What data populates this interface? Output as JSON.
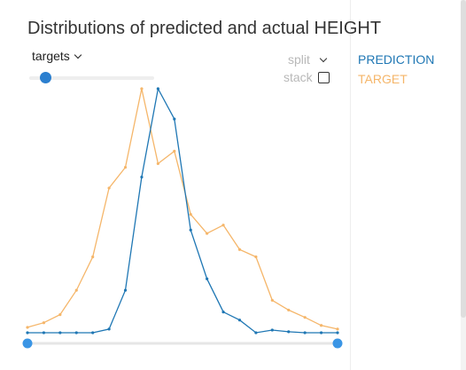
{
  "header": {
    "title": "Distributions of predicted and actual HEIGHT"
  },
  "controls": {
    "mode_dropdown": "targets",
    "split_label": "split",
    "stack_label": "stack",
    "stack_checked": false,
    "bins_slider_level": 0.13
  },
  "range_slider": {
    "low": 0,
    "high": 1
  },
  "colors": {
    "prediction": "#1f77b4",
    "target": "#f5b66a",
    "handle": "#3a95e5",
    "axis": "#e6e6e6"
  },
  "chart_data": {
    "type": "line",
    "title": "Distributions of predicted and actual HEIGHT",
    "xlabel": "",
    "ylabel": "",
    "grid": false,
    "legend_position": "right",
    "bins": 20,
    "ylim": [
      0,
      100
    ],
    "series": [
      {
        "name": "PREDICTION",
        "color": "#1f77b4",
        "values": [
          0,
          0,
          0,
          0,
          0,
          1.5,
          17.4,
          63.8,
          100,
          87.6,
          42.1,
          22.1,
          8.5,
          5.2,
          0,
          1.1,
          0.4,
          0,
          0,
          0
        ]
      },
      {
        "name": "TARGET",
        "color": "#f5b66a",
        "values": [
          2.2,
          4.1,
          7.4,
          17.4,
          31.1,
          59.3,
          67.8,
          100,
          69.3,
          74.4,
          48.5,
          40.7,
          44.1,
          34.1,
          31.1,
          13.3,
          9.3,
          6.3,
          3,
          1.5
        ]
      }
    ]
  }
}
